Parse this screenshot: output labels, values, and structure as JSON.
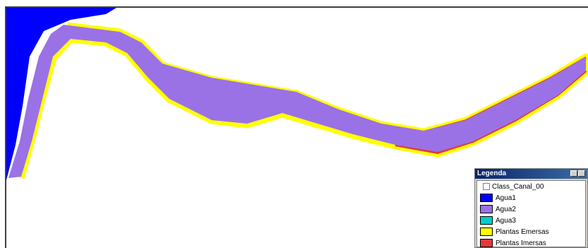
{
  "legend": {
    "title": "Legenda",
    "layer": "Class_Canal_00",
    "items": [
      {
        "label": "Agua1",
        "color": "#0000ff"
      },
      {
        "label": "Agua2",
        "color": "#9a72e6"
      },
      {
        "label": "Agua3",
        "color": "#00cccc"
      },
      {
        "label": "Plantas Emersas",
        "color": "#ffff00"
      },
      {
        "label": "Plantas Imersas",
        "color": "#e23a3a"
      }
    ]
  }
}
